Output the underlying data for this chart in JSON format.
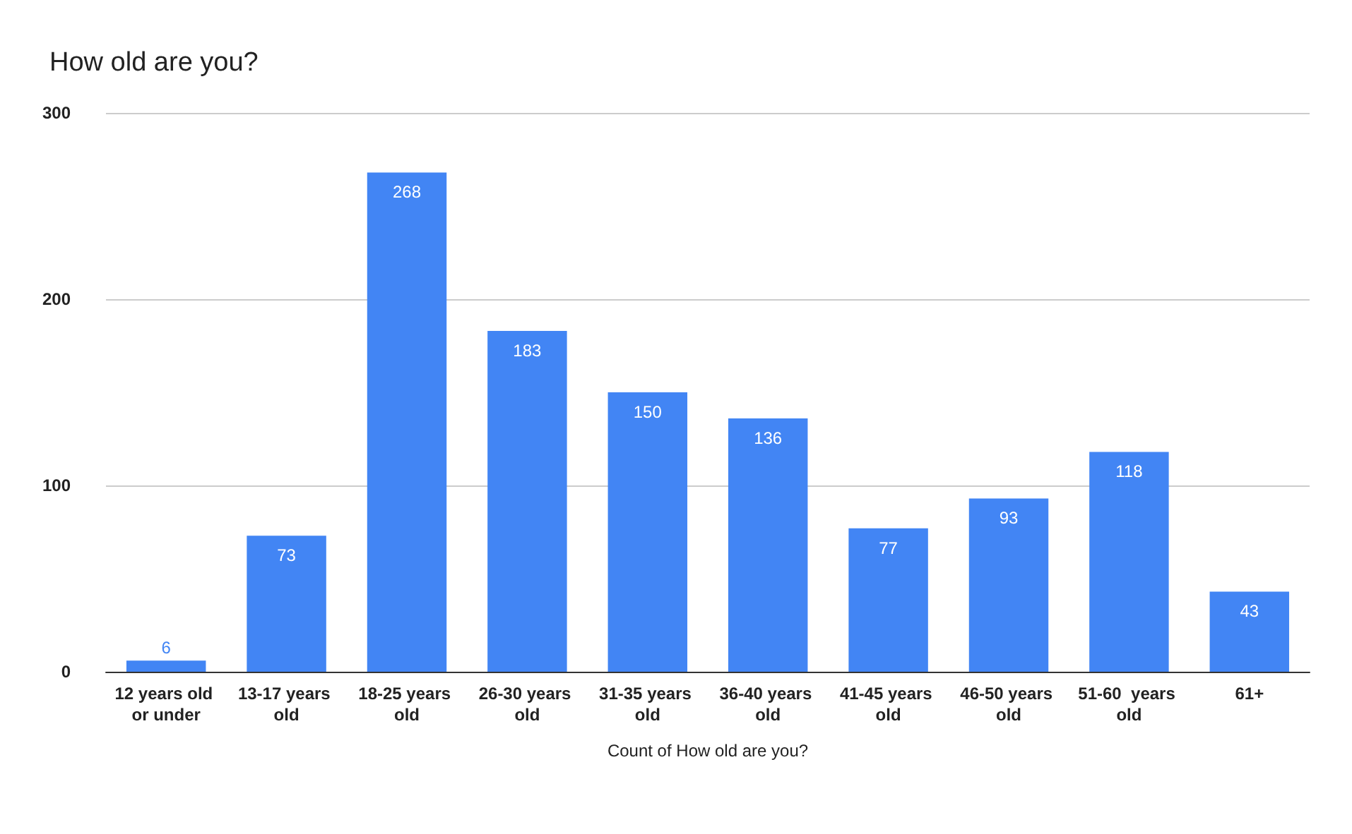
{
  "chart_data": {
    "type": "bar",
    "title": "How old are you?",
    "xlabel": "Count of How old are you?",
    "categories": [
      "12 years old or under",
      "13-17 years old",
      "18-25 years old",
      "26-30 years old",
      "31-35 years old",
      "36-40 years old",
      "41-45 years old",
      "46-50 years old",
      "51-60  years old",
      "61+"
    ],
    "values": [
      6,
      73,
      268,
      183,
      150,
      136,
      77,
      93,
      118,
      43
    ],
    "color": "#4285f4",
    "ylim": [
      0,
      300
    ],
    "yticks": [
      0,
      100,
      200,
      300
    ],
    "grid": "y",
    "data_labels": true
  }
}
